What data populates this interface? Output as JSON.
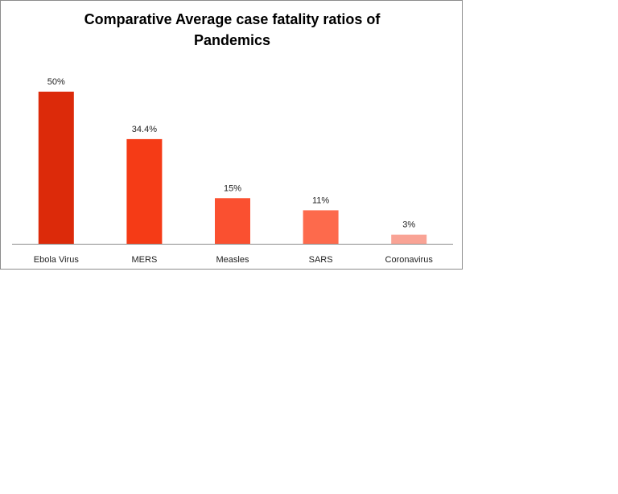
{
  "chart_data": {
    "type": "bar",
    "title_lines": [
      "Comparative  Average case fatality ratios  of",
      "Pandemics"
    ],
    "categories": [
      "Ebola Virus",
      "MERS",
      "Measles",
      "SARS",
      "Coronavirus"
    ],
    "values": [
      50,
      34.4,
      15,
      11,
      3
    ],
    "data_labels": [
      "50%",
      "34.4%",
      "15%",
      "11%",
      "3%"
    ],
    "colors": [
      "#dc2a0a",
      "#f53b16",
      "#fa5030",
      "#fd6a4c",
      "#f9a395"
    ],
    "ylim": [
      0,
      55
    ],
    "xlabel": "",
    "ylabel": "",
    "grid": false,
    "legend": "none",
    "axis_color": "#8c8c8c"
  }
}
